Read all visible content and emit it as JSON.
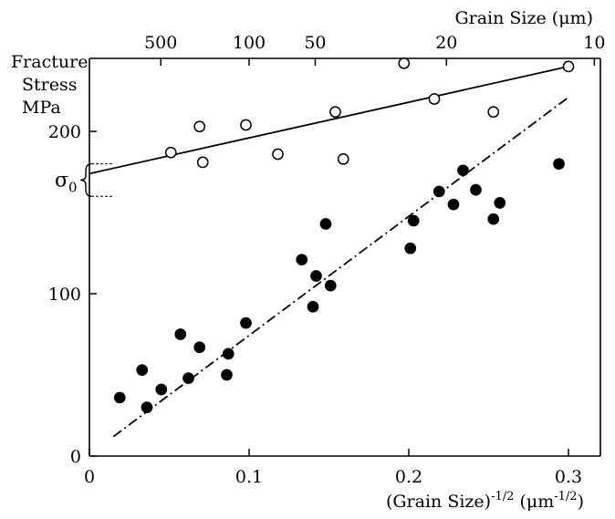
{
  "chart_data": {
    "type": "scatter",
    "xlabel_base": "(Grain Size)",
    "xlabel_exp": "-1/2",
    "xlabel_unit_base": " (μm",
    "xlabel_unit_exp": "-1/2",
    "xlabel_unit_close": ")",
    "ylabel_lines": [
      "Fracture",
      "Stress",
      "MPa"
    ],
    "top_axis_label": "Grain Size (μm)",
    "xlim": [
      0,
      0.32
    ],
    "ylim": [
      0,
      245
    ],
    "x_ticks": [
      0,
      0.1,
      0.2,
      0.3
    ],
    "x_tick_labels": [
      "0",
      "0.1",
      "0.2",
      "0.3"
    ],
    "y_ticks": [
      0,
      100,
      200
    ],
    "y_tick_labels": [
      "0",
      "100",
      "200"
    ],
    "top_ticks": [
      {
        "label": "500",
        "x": 0.0447
      },
      {
        "label": "100",
        "x": 0.1
      },
      {
        "label": "50",
        "x": 0.1414
      },
      {
        "label": "20",
        "x": 0.2236
      },
      {
        "label": "10",
        "x": 0.3162
      }
    ],
    "sigma_annotation": {
      "base": "σ",
      "sub": "0",
      "y_range": [
        180,
        160
      ]
    },
    "series": [
      {
        "marker": "open-circle",
        "points": [
          [
            0.051,
            187
          ],
          [
            0.069,
            203
          ],
          [
            0.071,
            181
          ],
          [
            0.098,
            204
          ],
          [
            0.118,
            186
          ],
          [
            0.154,
            212
          ],
          [
            0.159,
            183
          ],
          [
            0.197,
            242
          ],
          [
            0.216,
            220
          ],
          [
            0.253,
            212
          ],
          [
            0.3,
            240
          ]
        ],
        "fit": {
          "x": [
            0,
            0.3
          ],
          "y": [
            174,
            240
          ],
          "style": "solid"
        }
      },
      {
        "marker": "filled-circle",
        "points": [
          [
            0.019,
            36
          ],
          [
            0.033,
            53
          ],
          [
            0.036,
            30
          ],
          [
            0.045,
            41
          ],
          [
            0.057,
            75
          ],
          [
            0.062,
            48
          ],
          [
            0.069,
            67
          ],
          [
            0.086,
            50
          ],
          [
            0.087,
            63
          ],
          [
            0.098,
            82
          ],
          [
            0.133,
            121
          ],
          [
            0.14,
            92
          ],
          [
            0.142,
            111
          ],
          [
            0.148,
            143
          ],
          [
            0.151,
            105
          ],
          [
            0.201,
            128
          ],
          [
            0.203,
            145
          ],
          [
            0.219,
            163
          ],
          [
            0.228,
            155
          ],
          [
            0.234,
            176
          ],
          [
            0.242,
            164
          ],
          [
            0.253,
            146
          ],
          [
            0.257,
            156
          ],
          [
            0.294,
            180
          ]
        ],
        "fit": {
          "x": [
            0.015,
            0.3
          ],
          "y": [
            12,
            221
          ],
          "style": "dash-dot"
        }
      }
    ]
  }
}
